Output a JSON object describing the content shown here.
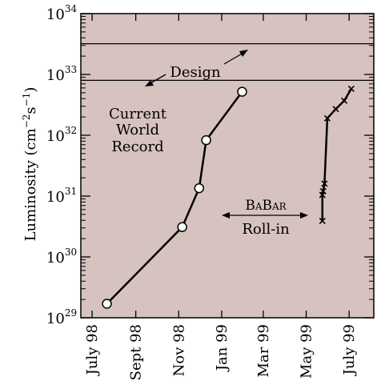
{
  "colors": {
    "plot_background": "#d6c2bf",
    "line": "#000000"
  },
  "chart_data": {
    "type": "line",
    "yscale": "log",
    "ylabel_base": "Luminosity  (cm",
    "ylabel_exp1": "−2",
    "ylabel_mid": "s",
    "ylabel_exp2": "−1",
    "ylabel_end": ")",
    "xlabel": "",
    "ylim": [
      1e+29,
      1e+34
    ],
    "xlim": [
      "1998-06-15",
      "1999-08-05"
    ],
    "y_ticks": [
      {
        "base": "10",
        "exp": "29",
        "value": 1e+29
      },
      {
        "base": "10",
        "exp": "30",
        "value": 1e+30
      },
      {
        "base": "10",
        "exp": "31",
        "value": 1e+31
      },
      {
        "base": "10",
        "exp": "32",
        "value": 1e+32
      },
      {
        "base": "10",
        "exp": "33",
        "value": 1e+33
      },
      {
        "base": "10",
        "exp": "34",
        "value": 1e+34
      }
    ],
    "x_ticks": [
      {
        "label": "July 98",
        "date": "1998-07-01"
      },
      {
        "label": "Sept 98",
        "date": "1998-09-01"
      },
      {
        "label": "Nov 98",
        "date": "1998-11-01"
      },
      {
        "label": "Jan 99",
        "date": "1999-01-01"
      },
      {
        "label": "Mar 99",
        "date": "1999-03-01"
      },
      {
        "label": "May 99",
        "date": "1999-05-01"
      },
      {
        "label": "July 99",
        "date": "1999-07-01"
      }
    ],
    "series": [
      {
        "marker": "circle",
        "points": [
          {
            "x": "1998-07-22",
            "y": 1.7e+29
          },
          {
            "x": "1998-11-06",
            "y": 3.1e+30
          },
          {
            "x": "1998-11-30",
            "y": 1.35e+31
          },
          {
            "x": "1998-12-10",
            "y": 8.3e+31
          },
          {
            "x": "1999-01-30",
            "y": 5.2e+32
          }
        ]
      },
      {
        "marker": "x",
        "points": [
          {
            "x": "1999-05-24",
            "y": 3.9e+30
          },
          {
            "x": "1999-05-24",
            "y": 1.05e+31
          },
          {
            "x": "1999-05-25",
            "y": 1.2e+31
          },
          {
            "x": "1999-05-27",
            "y": 1.6e+31
          },
          {
            "x": "1999-05-31",
            "y": 1.9e+32
          },
          {
            "x": "1999-06-12",
            "y": 2.7e+32
          },
          {
            "x": "1999-06-24",
            "y": 3.7e+32
          },
          {
            "x": "1999-07-04",
            "y": 5.8e+32
          }
        ]
      }
    ],
    "reference_lines": [
      {
        "name": "design",
        "y": 3.2e+33
      },
      {
        "name": "current-world-record",
        "y": 8e+32
      }
    ],
    "annotations": {
      "design": "Design",
      "record_line1": "Current",
      "record_line2": "World",
      "record_line3": "Record",
      "babar_b1": "B",
      "babar_a1": "A",
      "babar_b2": "B",
      "babar_ar": "AR",
      "rollin": "Roll-in"
    }
  }
}
